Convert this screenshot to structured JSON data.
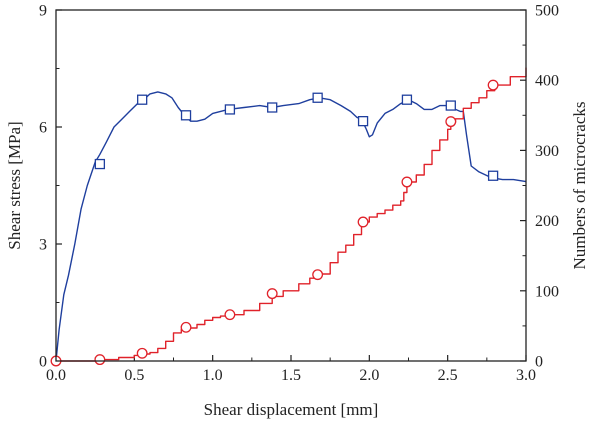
{
  "chart_data": {
    "type": "line",
    "xlabel": "Shear displacement [mm]",
    "ylabel_left": "Shear stress [MPa]",
    "ylabel_right": "Numbers of microcracks",
    "xlim": [
      0,
      3.0
    ],
    "ylim_left": [
      0,
      9
    ],
    "ylim_right": [
      0,
      500
    ],
    "xticks": [
      "0.0",
      "0.5",
      "1.0",
      "1.5",
      "2.0",
      "2.5",
      "3.0"
    ],
    "yticks_left": [
      "0",
      "3",
      "6",
      "9"
    ],
    "yticks_right": [
      "0",
      "100",
      "200",
      "300",
      "400",
      "500"
    ],
    "grid": false,
    "series": [
      {
        "color": "#1f3f9e",
        "marker": "square",
        "axis": "left",
        "x": [
          0.0,
          0.02,
          0.05,
          0.08,
          0.12,
          0.16,
          0.2,
          0.25,
          0.28,
          0.32,
          0.37,
          0.42,
          0.47,
          0.52,
          0.56,
          0.6,
          0.65,
          0.7,
          0.74,
          0.78,
          0.82,
          0.86,
          0.9,
          0.95,
          1.0,
          1.05,
          1.1,
          1.2,
          1.3,
          1.38,
          1.45,
          1.55,
          1.62,
          1.68,
          1.75,
          1.82,
          1.88,
          1.92,
          1.95,
          1.98,
          2.0,
          2.02,
          2.05,
          2.1,
          2.15,
          2.2,
          2.25,
          2.3,
          2.35,
          2.4,
          2.45,
          2.5,
          2.55,
          2.58,
          2.6,
          2.62,
          2.65,
          2.7,
          2.78,
          2.85,
          2.92,
          3.0
        ],
        "y": [
          0.0,
          0.8,
          1.7,
          2.2,
          3.0,
          3.9,
          4.5,
          5.1,
          5.3,
          5.6,
          6.0,
          6.2,
          6.4,
          6.6,
          6.7,
          6.85,
          6.9,
          6.85,
          6.75,
          6.5,
          6.3,
          6.15,
          6.15,
          6.2,
          6.35,
          6.4,
          6.45,
          6.5,
          6.55,
          6.5,
          6.55,
          6.6,
          6.7,
          6.75,
          6.7,
          6.55,
          6.4,
          6.25,
          6.2,
          5.95,
          5.75,
          5.8,
          6.1,
          6.35,
          6.45,
          6.6,
          6.7,
          6.6,
          6.45,
          6.45,
          6.55,
          6.55,
          6.45,
          6.4,
          6.4,
          5.8,
          5.0,
          4.85,
          4.7,
          4.65,
          4.65,
          4.6
        ],
        "markers_x": [
          0.28,
          0.55,
          0.83,
          1.11,
          1.38,
          1.67,
          1.96,
          2.24,
          2.52,
          2.79
        ],
        "markers_y": [
          5.05,
          6.7,
          6.3,
          6.45,
          6.5,
          6.75,
          6.15,
          6.7,
          6.55,
          4.75
        ]
      },
      {
        "color": "#e0222a",
        "marker": "circle",
        "axis": "right",
        "x": [
          0.0,
          0.2,
          0.3,
          0.4,
          0.5,
          0.55,
          0.6,
          0.65,
          0.7,
          0.75,
          0.8,
          0.85,
          0.9,
          0.95,
          1.0,
          1.05,
          1.1,
          1.2,
          1.3,
          1.38,
          1.45,
          1.55,
          1.62,
          1.68,
          1.75,
          1.8,
          1.85,
          1.9,
          1.95,
          2.0,
          2.05,
          2.1,
          2.15,
          2.2,
          2.22,
          2.24,
          2.3,
          2.35,
          2.4,
          2.45,
          2.5,
          2.52,
          2.55,
          2.6,
          2.65,
          2.7,
          2.75,
          2.8,
          2.9,
          3.0
        ],
        "y": [
          0,
          0,
          2,
          5,
          8,
          10,
          12,
          18,
          28,
          40,
          45,
          47,
          52,
          58,
          62,
          64,
          66,
          72,
          82,
          92,
          100,
          110,
          118,
          124,
          140,
          155,
          165,
          180,
          198,
          205,
          210,
          215,
          222,
          228,
          240,
          255,
          265,
          280,
          300,
          315,
          330,
          340,
          345,
          360,
          368,
          375,
          385,
          393,
          405,
          418
        ],
        "markers_x": [
          0.0,
          0.28,
          0.55,
          0.83,
          1.11,
          1.38,
          1.67,
          1.96,
          2.24,
          2.52,
          2.79
        ],
        "markers_y": [
          0,
          2,
          11,
          48,
          66,
          96,
          123,
          198,
          255,
          341,
          393
        ]
      }
    ]
  }
}
